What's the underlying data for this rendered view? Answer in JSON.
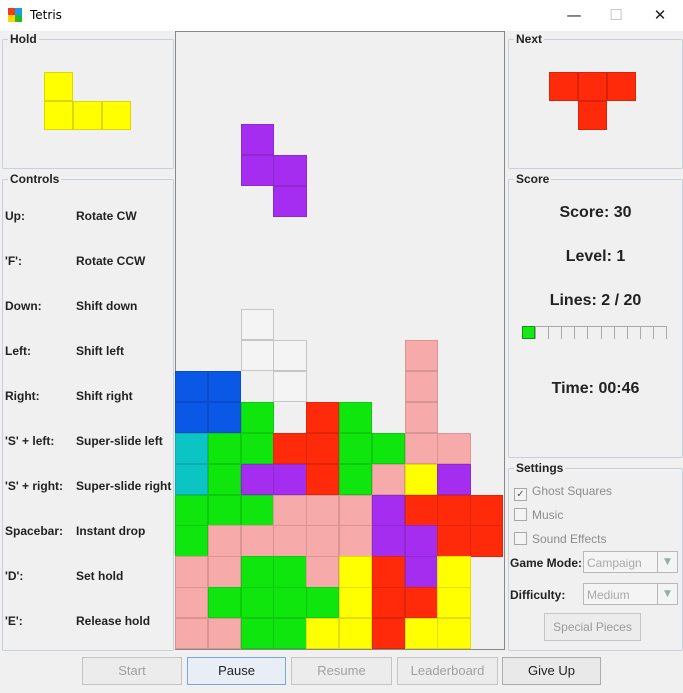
{
  "window": {
    "title": "Tetris",
    "minimize_glyph": "—",
    "maximize_glyph": "☐",
    "close_glyph": "✕"
  },
  "hold": {
    "title": "Hold",
    "color": "#ffff00",
    "cells": [
      [
        0,
        0
      ],
      [
        0,
        1
      ],
      [
        1,
        1
      ],
      [
        2,
        1
      ]
    ]
  },
  "next": {
    "title": "Next",
    "color": "#ff2a0a",
    "cells": [
      [
        0,
        0
      ],
      [
        1,
        0
      ],
      [
        2,
        0
      ],
      [
        1,
        1
      ]
    ]
  },
  "controls": {
    "title": "Controls",
    "items": [
      {
        "key": "Up:",
        "action": "Rotate CW"
      },
      {
        "key": "'F':",
        "action": "Rotate CCW"
      },
      {
        "key": "Down:",
        "action": "Shift down"
      },
      {
        "key": "Left:",
        "action": "Shift left"
      },
      {
        "key": "Right:",
        "action": "Shift right"
      },
      {
        "key": "'S' + left:",
        "action": "Super-slide left"
      },
      {
        "key": "'S' + right:",
        "action": "Super-slide right"
      },
      {
        "key": "Spacebar:",
        "action": "Instant drop"
      },
      {
        "key": "'D':",
        "action": "Set hold"
      },
      {
        "key": "'E':",
        "action": "Release hold"
      }
    ]
  },
  "score": {
    "title": "Score",
    "score_text": "Score: 30",
    "level_text": "Level: 1",
    "lines_text": "Lines: 2 / 20",
    "lines_cleared": 2,
    "lines_goal": 20,
    "time_text": "Time: 00:46"
  },
  "settings": {
    "title": "Settings",
    "ghost_squares": {
      "label": "Ghost Squares",
      "checked": true
    },
    "music": {
      "label": "Music",
      "checked": false
    },
    "sound_effects": {
      "label": "Sound Effects",
      "checked": false
    },
    "game_mode": {
      "label": "Game Mode:",
      "value": "Campaign"
    },
    "difficulty": {
      "label": "Difficulty:",
      "value": "Medium"
    },
    "special_pieces_label": "Special Pieces"
  },
  "buttons": {
    "start": "Start",
    "pause": "Pause",
    "resume": "Resume",
    "leaderboard": "Leaderboard",
    "give_up": "Give Up"
  },
  "colors": {
    "blue": "#0b57e6",
    "green": "#0ee60e",
    "red": "#ff2a0a",
    "pink": "#f7aaaa",
    "purple": "#a42df0",
    "yellow": "#ffff00",
    "cyan": "#0cc4c4",
    "ghost": "#f0f0f0",
    "accent_progress": "#17e817"
  },
  "board": {
    "columns": 10,
    "rows": 20,
    "falling_piece": {
      "color": "purple",
      "cells": [
        [
          2,
          4
        ],
        [
          2,
          5
        ],
        [
          3,
          5
        ],
        [
          3,
          6
        ]
      ]
    },
    "ghost_cells": [
      [
        2,
        10
      ],
      [
        2,
        11
      ],
      [
        3,
        11
      ],
      [
        3,
        12
      ]
    ],
    "stack_rows": {
      "11": ".......P..",
      "12": "BB.....P..",
      "13": "BBG.RG.P..",
      "14": "CGGRRGGPP.",
      "15": "CGUURGPYU.",
      "16": "GGGPPPURRR",
      "17": "GPPPPPUURR",
      "18": "PPGGPYRUY.",
      "19": "PGGGGYRRY.",
      "20": "PPGGYYRYY."
    }
  }
}
